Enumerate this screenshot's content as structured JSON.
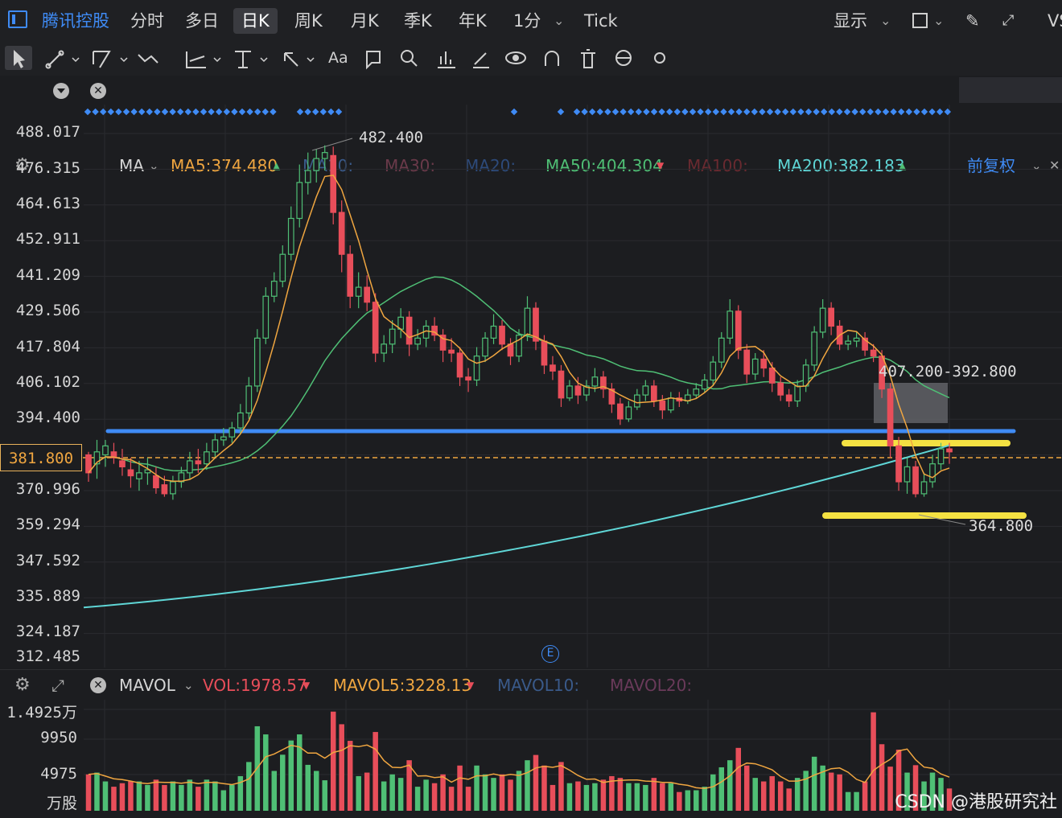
{
  "header": {
    "ticker": "腾讯控股",
    "tabs": [
      "分时",
      "多日",
      "日K",
      "周K",
      "月K",
      "季K",
      "年K",
      "1分",
      "Tick"
    ],
    "active_tab": "日K",
    "display_label": "显示",
    "vs_label": "VS"
  },
  "toolbar": {
    "text_tool_label": "Aa",
    "icons": [
      "cursor-icon",
      "line-icon",
      "channel-icon",
      "wave-icon",
      "fib-icon",
      "vertical-line-icon",
      "arrow-icon",
      "text-icon",
      "comment-icon",
      "search-icon",
      "bar-chart-icon",
      "brush-icon",
      "eye-icon",
      "magnet-icon",
      "trash-icon",
      "sync-icon",
      "gear-icon"
    ]
  },
  "indicators": {
    "type_label": "MA",
    "ma5": "MA5:374.480",
    "ma10": "MA10:",
    "ma30": "MA30:",
    "ma20": "MA20:",
    "ma50": "MA50:404.304",
    "ma100": "MA100:",
    "ma200": "MA200:382.183",
    "adjust_label": "前复权",
    "colors": {
      "ma5": "#f0a640",
      "ma50": "#4fbf75",
      "ma200": "#5fd6d6",
      "blue_line": "#3f8bf5",
      "yellow": "#f4e142",
      "up": "#e84e5a",
      "down": "#4fbf75"
    }
  },
  "price_axis": {
    "ticks": [
      "488.017",
      "476.315",
      "464.613",
      "452.911",
      "441.209",
      "429.506",
      "417.804",
      "406.102",
      "394.400",
      "370.996",
      "359.294",
      "347.592",
      "335.889",
      "324.187",
      "312.485"
    ],
    "current_price": "381.800"
  },
  "annotations": {
    "high_label": "482.400",
    "range_label": "407.200-392.800",
    "low_label": "364.800",
    "event_marker": "E"
  },
  "volume": {
    "type_label": "MAVOL",
    "vol": "VOL:1978.57",
    "mavol5": "MAVOL5:3228.13",
    "mavol10": "MAVOL10:",
    "mavol20": "MAVOL20:",
    "ticks": [
      "1.4925万",
      "9950",
      "4975",
      "万股"
    ]
  },
  "watermark": "CSDN @港股研究社",
  "chart_data": {
    "type": "candlestick",
    "ylim": [
      309,
      492
    ],
    "candles": [
      [
        379,
        373,
        380,
        370
      ],
      [
        376,
        380,
        384,
        371
      ],
      [
        379,
        382,
        384,
        375
      ],
      [
        380,
        378,
        383,
        376
      ],
      [
        377,
        375,
        381,
        372
      ],
      [
        374,
        372,
        378,
        368
      ],
      [
        371,
        373,
        377,
        367
      ],
      [
        373,
        374,
        378,
        369
      ],
      [
        372,
        368,
        375,
        366
      ],
      [
        369,
        366,
        372,
        365
      ],
      [
        366,
        370,
        372,
        364
      ],
      [
        370,
        373,
        375,
        368
      ],
      [
        373,
        377,
        380,
        371
      ],
      [
        377,
        376,
        381,
        373
      ],
      [
        376,
        380,
        383,
        374
      ],
      [
        380,
        384,
        386,
        378
      ],
      [
        384,
        385,
        388,
        382
      ],
      [
        385,
        388,
        390,
        383
      ],
      [
        388,
        393,
        396,
        386
      ],
      [
        393,
        402,
        405,
        391
      ],
      [
        402,
        418,
        421,
        400
      ],
      [
        418,
        432,
        435,
        416
      ],
      [
        432,
        437,
        440,
        430
      ],
      [
        437,
        446,
        449,
        435
      ],
      [
        446,
        458,
        462,
        444
      ],
      [
        458,
        470,
        476,
        455
      ],
      [
        470,
        474,
        480,
        466
      ],
      [
        474,
        478,
        481,
        470
      ],
      [
        478,
        480,
        482.4,
        474
      ],
      [
        479,
        460,
        482,
        456
      ],
      [
        460,
        446,
        464,
        440
      ],
      [
        446,
        432,
        449,
        428
      ],
      [
        432,
        435,
        440,
        428
      ],
      [
        435,
        430,
        439,
        427
      ],
      [
        430,
        413,
        433,
        410
      ],
      [
        413,
        416,
        419,
        410
      ],
      [
        416,
        421,
        424,
        413
      ],
      [
        421,
        425,
        428,
        418
      ],
      [
        425,
        416,
        427,
        412
      ],
      [
        416,
        418,
        421,
        414
      ],
      [
        418,
        422,
        424,
        415
      ],
      [
        422,
        419,
        425,
        417
      ],
      [
        419,
        414,
        421,
        410
      ],
      [
        414,
        413,
        418,
        410
      ],
      [
        413,
        405,
        415,
        402
      ],
      [
        405,
        404,
        408,
        400
      ],
      [
        404,
        412,
        415,
        402
      ],
      [
        412,
        418,
        420,
        410
      ],
      [
        418,
        422,
        426,
        416
      ],
      [
        422,
        416,
        424,
        414
      ],
      [
        416,
        412,
        418,
        409
      ],
      [
        412,
        419,
        421,
        410
      ],
      [
        419,
        428,
        432,
        417
      ],
      [
        428,
        417,
        430,
        414
      ],
      [
        417,
        409,
        419,
        406
      ],
      [
        409,
        407,
        412,
        404
      ],
      [
        407,
        398,
        409,
        395
      ],
      [
        398,
        402,
        404,
        397
      ],
      [
        402,
        399,
        405,
        396
      ],
      [
        399,
        402,
        404,
        397
      ],
      [
        402,
        405,
        408,
        400
      ],
      [
        405,
        401,
        407,
        398
      ],
      [
        401,
        396,
        403,
        393
      ],
      [
        396,
        391,
        398,
        389
      ],
      [
        391,
        395,
        397,
        390
      ],
      [
        395,
        399,
        401,
        394
      ],
      [
        399,
        402,
        404,
        397
      ],
      [
        402,
        397,
        404,
        395
      ],
      [
        397,
        394,
        399,
        391
      ],
      [
        394,
        398,
        400,
        393
      ],
      [
        398,
        397,
        400,
        395
      ],
      [
        397,
        399,
        401,
        396
      ],
      [
        399,
        401,
        403,
        398
      ],
      [
        401,
        404,
        406,
        400
      ],
      [
        404,
        410,
        412,
        402
      ],
      [
        410,
        418,
        420,
        408
      ],
      [
        418,
        427,
        431,
        416
      ],
      [
        427,
        414,
        429,
        411
      ],
      [
        414,
        406,
        416,
        403
      ],
      [
        406,
        411,
        413,
        404
      ],
      [
        411,
        408,
        414,
        405
      ],
      [
        408,
        403,
        410,
        400
      ],
      [
        403,
        399,
        405,
        397
      ],
      [
        399,
        397,
        401,
        395
      ],
      [
        397,
        402,
        404,
        395
      ],
      [
        402,
        409,
        411,
        400
      ],
      [
        409,
        420,
        422,
        407
      ],
      [
        420,
        428,
        431,
        418
      ],
      [
        428,
        422,
        430,
        419
      ],
      [
        422,
        416,
        424,
        414
      ],
      [
        416,
        417,
        419,
        414
      ],
      [
        417,
        418,
        420,
        415
      ],
      [
        418,
        414,
        420,
        412
      ],
      [
        414,
        412,
        416,
        410
      ],
      [
        412,
        401,
        414,
        398
      ],
      [
        401,
        382,
        403,
        378
      ],
      [
        382,
        370,
        385,
        367
      ],
      [
        370,
        375,
        378,
        366
      ],
      [
        375,
        366,
        377,
        364.8
      ],
      [
        366,
        370,
        373,
        365
      ],
      [
        370,
        376,
        379,
        368
      ],
      [
        376,
        381,
        383,
        374
      ],
      [
        381,
        380,
        383,
        376
      ]
    ],
    "ma200": {
      "start": 328,
      "end": 382.183
    },
    "mavol_ticks": [
      14925,
      9950,
      4975
    ]
  }
}
